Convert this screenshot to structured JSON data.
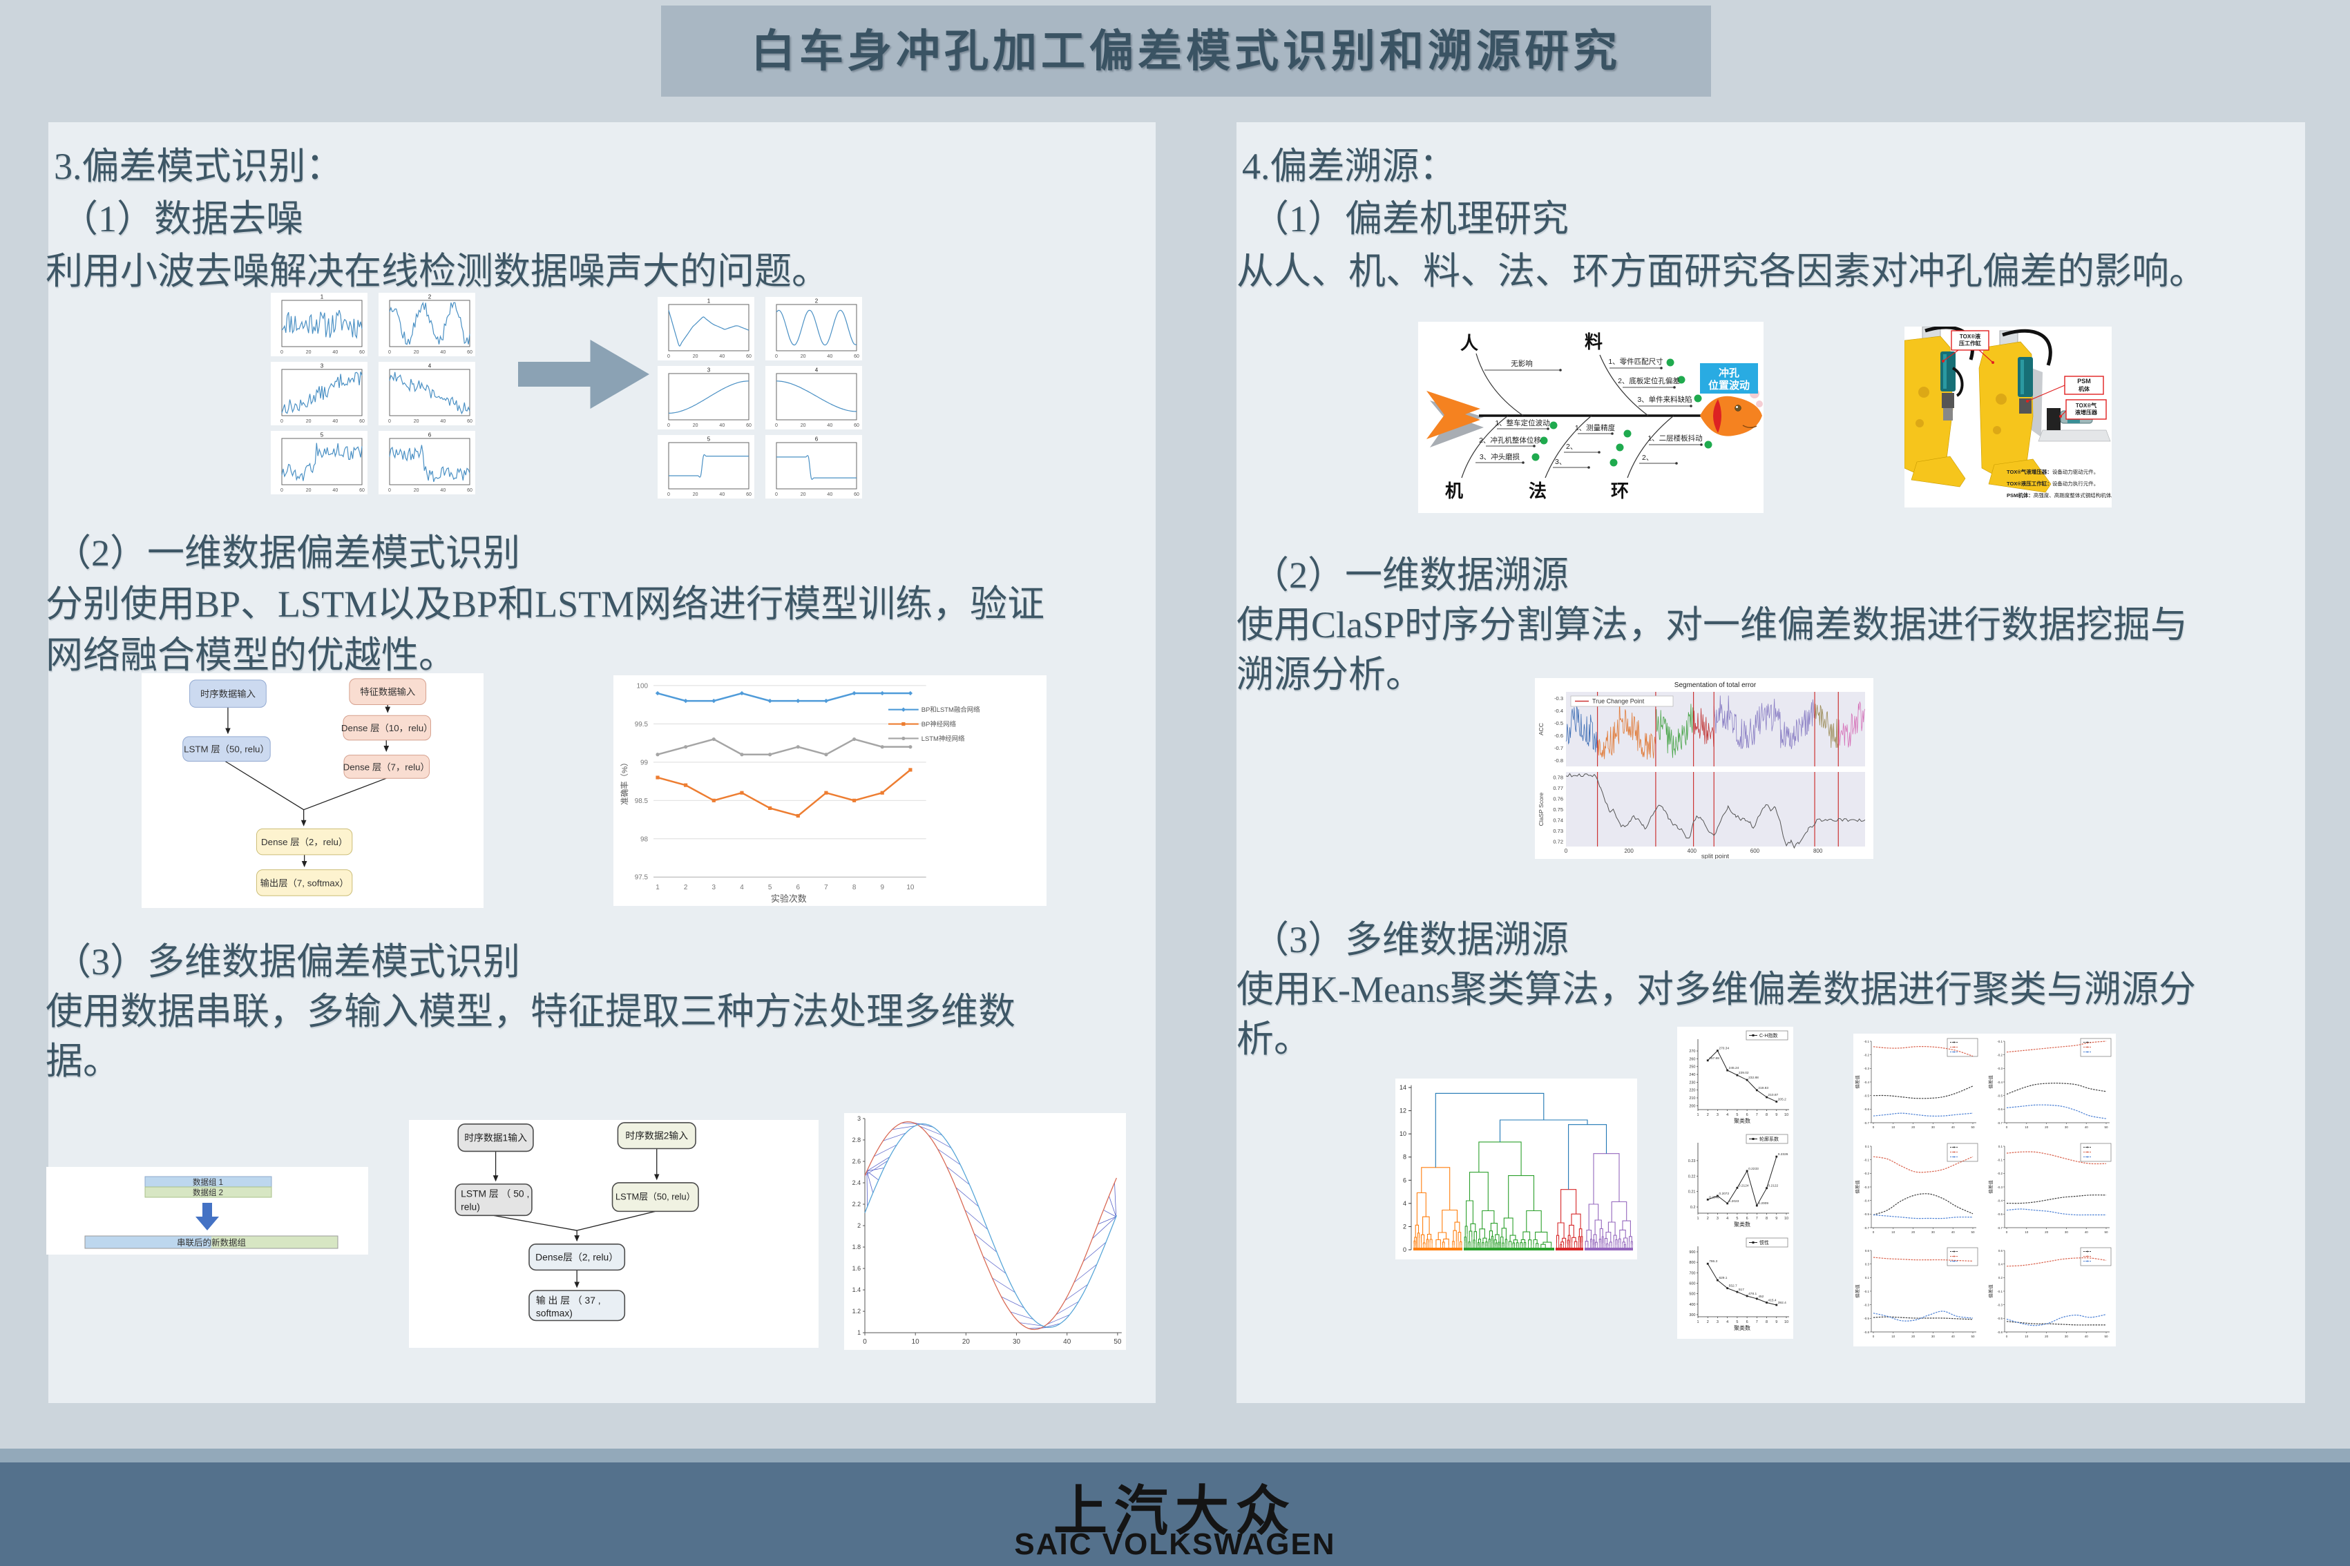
{
  "title": "白车身冲孔加工偏差模式识别和溯源研究",
  "footer": {
    "logo_cn": "上汽大众",
    "logo_en": "SAIC VOLKSWAGEN"
  },
  "left": {
    "heading": "3.偏差模式识别：",
    "s1_label": "（1）数据去噪",
    "s1_desc": "利用小波去噪解决在线检测数据噪声大的问题。",
    "s2_label": "（2）一维数据偏差模式识别",
    "s2_line1": "分别使用BP、LSTM以及BP和LSTM网络进行模型训练，验证",
    "s2_line2": "网络融合模型的优越性。",
    "s3_label": "（3）多维数据偏差模式识别",
    "s3_line1": "使用数据串联，多输入模型，特征提取三种方法处理多维数",
    "s3_line2": "据。",
    "flowchart1": {
      "n_ts": "时序数据输入",
      "n_lstm": "LSTM 层（50, relu）",
      "n_feat": "特征数据输入",
      "n_d10": "Dense 层（10，relu）",
      "n_d7": "Dense 层（7，relu）",
      "n_d2": "Dense 层（2，relu）",
      "n_out": "输出层（7, softmax）"
    },
    "concat": {
      "bar1": "数据组 1",
      "bar2": "数据组 2",
      "result": "串联后的新数据组"
    },
    "flowchart2": {
      "n_ts1": "时序数据1输入",
      "n_lstm1": [
        "LSTM 层 （ 50 ,",
        "relu)"
      ],
      "n_ts2": "时序数据2输入",
      "n_lstm2": "LSTM层（50, relu）",
      "n_d2": "Dense层（2, relu）",
      "n_out": [
        "输 出 层 （ 37 ,",
        "softmax)"
      ]
    }
  },
  "right": {
    "heading": "4.偏差溯源：",
    "s1_label": "（1）偏差机理研究",
    "s1_desc": "从人、机、料、法、环方面研究各因素对冲孔偏差的影响。",
    "s2_label": "（2）一维数据溯源",
    "s2_line1": "使用ClaSP时序分割算法，对一维偏差数据进行数据挖掘与",
    "s2_line2": "溯源分析。",
    "s3_label": "（3）多维数据溯源",
    "s3_line1": "使用K-Means聚类算法，对多维偏差数据进行聚类与溯源分",
    "s3_line2": "析。",
    "fishbone": {
      "effect": [
        "冲孔",
        "位置波动"
      ],
      "box_color": "#29abe2",
      "fish_color": "#f58220",
      "dot_color": "#1faa4e",
      "cat_man": "人",
      "cat_material": "料",
      "cat_machine": "机",
      "cat_method": "法",
      "cat_env": "环",
      "man_items": [
        "无影响"
      ],
      "material_items": [
        "1、零件匹配尺寸",
        "2、底板定位孔偏差",
        "3、单件来料缺陷"
      ],
      "machine_items": [
        "1、整车定位波动",
        "2、冲孔机整体位移",
        "3、冲头磨损"
      ],
      "method_items": [
        "1、测量精度",
        "2、",
        "3、"
      ],
      "env_items": [
        "1、二层楼板抖动",
        "2、"
      ]
    },
    "machine_fig": {
      "label_cylinder": [
        "TOX®液",
        "压工作缸"
      ],
      "label_body": [
        "PSM",
        "机体"
      ],
      "label_booster": [
        "TOX®气",
        "液增压器"
      ],
      "cap1": [
        "TOX®气液增压器：",
        "设备动力驱动元件。"
      ],
      "cap2": [
        "TOX®液压工作缸：",
        "设备动力执行元件。"
      ],
      "cap3": [
        "PSM机体：",
        "高强度、高刚度整体式钢结构机体。"
      ]
    }
  },
  "chart_data": [
    {
      "name": "wavelet",
      "type": "line",
      "panel_titles": [
        "1",
        "2",
        "3",
        "4",
        "5",
        "6"
      ],
      "x_ticks": [
        0,
        20,
        40,
        60
      ],
      "line_color": "#4a90c4",
      "shapes_before": [
        "flat",
        "sine",
        "rise",
        "fall",
        "stepup",
        "stepdown"
      ],
      "shapes_after": [
        "dipbump",
        "sine",
        "rise",
        "fall",
        "stepup",
        "stepdown"
      ]
    },
    {
      "name": "accuracy",
      "type": "line",
      "xlabel": "实验次数",
      "ylabel": "准确率（%）",
      "x": [
        1,
        2,
        3,
        4,
        5,
        6,
        7,
        8,
        9,
        10
      ],
      "ylim": [
        97.5,
        100
      ],
      "yticks": [
        97.5,
        98,
        98.5,
        99,
        99.5,
        100
      ],
      "series": [
        {
          "label": "BP和LSTM融合网络",
          "color": "#4F9BD9",
          "values": [
            99.9,
            99.8,
            99.8,
            99.9,
            99.8,
            99.8,
            99.8,
            99.9,
            99.9,
            99.9
          ]
        },
        {
          "label": "BP神经网络",
          "color": "#ED7D31",
          "values": [
            98.8,
            98.7,
            98.5,
            98.6,
            98.4,
            98.3,
            98.6,
            98.5,
            98.6,
            98.9
          ]
        },
        {
          "label": "LSTM神经网络",
          "color": "#A5A5A5",
          "values": [
            99.1,
            99.2,
            99.3,
            99.1,
            99.1,
            99.2,
            99.1,
            99.3,
            99.2,
            99.2
          ]
        }
      ]
    },
    {
      "name": "dtw",
      "type": "line",
      "xticks": [
        0,
        10,
        20,
        30,
        40,
        50
      ],
      "yticks": [
        1,
        1.2,
        1.4,
        1.6,
        1.8,
        2,
        2.2,
        2.4,
        2.6,
        2.8,
        3
      ],
      "curve_colors": {
        "reference": "#d96a55",
        "aligned": "#58a6d8",
        "links": "#5560c8"
      }
    },
    {
      "name": "clasp",
      "type": "line",
      "title": "Segmentation of total error",
      "xlabel": "split point",
      "xticks": [
        0,
        200,
        400,
        600,
        800
      ],
      "legend": [
        "True Change Point"
      ],
      "top": {
        "ylabel": "ACC",
        "yticks": [
          -0.3,
          -0.4,
          -0.5,
          -0.6,
          -0.7,
          -0.8
        ]
      },
      "bottom": {
        "ylabel": "ClaSP Score",
        "yticks": [
          0.72,
          0.73,
          0.74,
          0.75,
          0.76,
          0.77,
          0.78
        ]
      },
      "change_points": [
        100,
        285,
        405,
        470,
        790,
        865
      ],
      "segments": [
        {
          "start": 0,
          "end": 100,
          "color": "#3f6fb5",
          "mean": -0.58
        },
        {
          "start": 100,
          "end": 285,
          "color": "#e07b39",
          "mean": -0.6
        },
        {
          "start": 285,
          "end": 405,
          "color": "#4aa54a",
          "mean": -0.57
        },
        {
          "start": 405,
          "end": 470,
          "color": "#c23b3b",
          "mean": -0.55
        },
        {
          "start": 470,
          "end": 790,
          "color": "#8a7fc4",
          "mean": -0.52
        },
        {
          "start": 790,
          "end": 865,
          "color": "#9a8a55",
          "mean": -0.55
        },
        {
          "start": 865,
          "end": 950,
          "color": "#d671b8",
          "mean": -0.52
        }
      ],
      "score": [
        [
          0,
          0.782
        ],
        [
          95,
          0.782
        ],
        [
          110,
          0.77
        ],
        [
          125,
          0.757
        ],
        [
          140,
          0.748
        ],
        [
          150,
          0.75
        ],
        [
          160,
          0.742
        ],
        [
          175,
          0.735
        ],
        [
          190,
          0.733
        ],
        [
          205,
          0.74
        ],
        [
          215,
          0.743
        ],
        [
          230,
          0.74
        ],
        [
          245,
          0.735
        ],
        [
          255,
          0.731
        ],
        [
          270,
          0.742
        ],
        [
          285,
          0.75
        ],
        [
          295,
          0.755
        ],
        [
          310,
          0.75
        ],
        [
          325,
          0.742
        ],
        [
          340,
          0.736
        ],
        [
          355,
          0.733
        ],
        [
          370,
          0.73
        ],
        [
          385,
          0.722
        ],
        [
          395,
          0.726
        ],
        [
          405,
          0.737
        ],
        [
          415,
          0.743
        ],
        [
          430,
          0.742
        ],
        [
          445,
          0.735
        ],
        [
          455,
          0.728
        ],
        [
          470,
          0.726
        ],
        [
          485,
          0.734
        ],
        [
          500,
          0.745
        ],
        [
          515,
          0.752
        ],
        [
          525,
          0.748
        ],
        [
          540,
          0.744
        ],
        [
          555,
          0.741
        ],
        [
          570,
          0.74
        ],
        [
          585,
          0.737
        ],
        [
          595,
          0.732
        ],
        [
          610,
          0.742
        ],
        [
          625,
          0.751
        ],
        [
          635,
          0.755
        ],
        [
          650,
          0.749
        ],
        [
          665,
          0.752
        ],
        [
          680,
          0.738
        ],
        [
          690,
          0.725
        ],
        [
          700,
          0.717
        ],
        [
          715,
          0.72
        ],
        [
          725,
          0.715
        ],
        [
          740,
          0.719
        ],
        [
          755,
          0.726
        ],
        [
          770,
          0.731
        ],
        [
          785,
          0.735
        ],
        [
          800,
          0.74
        ],
        [
          860,
          0.74
        ],
        [
          950,
          0.74
        ]
      ]
    },
    {
      "name": "dendrogram",
      "type": "dendrogram",
      "yticks": [
        0,
        2,
        4,
        6,
        8,
        10,
        12,
        14
      ],
      "link_color": "#1f77b4",
      "merge_heights": [
        10.8,
        11.2,
        13.5
      ],
      "clusters": [
        {
          "color": "#ff7f0e",
          "x0": 26,
          "x1": 97,
          "root_height": 7.1
        },
        {
          "color": "#2ca02c",
          "x0": 99,
          "x1": 230,
          "root_height": 9.3
        },
        {
          "color": "#d62728",
          "x0": 232,
          "x1": 272,
          "root_height": 5.2
        },
        {
          "color": "#9467bd",
          "x0": 274,
          "x1": 344,
          "root_height": 8.3
        }
      ]
    },
    {
      "name": "kmeans_metrics",
      "type": "line",
      "xlabel": "聚类数",
      "charts": [
        {
          "legend": "C-H指数",
          "x": [
            2,
            3,
            4,
            5,
            6,
            7,
            8,
            9
          ],
          "values": [
            257.88,
            270.34,
            245.24,
            239.02,
            232.88,
            219.83,
            210.87,
            205.2
          ],
          "ylim": [
            195,
            278
          ],
          "yticks": [
            200,
            210,
            220,
            230,
            240,
            250,
            260,
            270
          ]
        },
        {
          "legend": "轮廓系数",
          "x": [
            2,
            3,
            4,
            5,
            6,
            7,
            8,
            9
          ],
          "values": [
            0.2048,
            0.2072,
            0.2023,
            0.2124,
            0.2233,
            0.2009,
            0.2122,
            0.2326
          ],
          "ylim": [
            0.196,
            0.238
          ],
          "yticks": [
            0.2,
            0.21,
            0.22,
            0.23
          ]
        },
        {
          "legend": "惯性",
          "x": [
            2,
            3,
            4,
            5,
            6,
            7,
            8,
            9
          ],
          "values": [
            786.3,
            629.1,
            552.7,
            517.0,
            478.1,
            452.0,
            415.4,
            392.4
          ],
          "ylim": [
            280,
            900
          ],
          "yticks": [
            300,
            400,
            500,
            600,
            700,
            800,
            900
          ]
        }
      ]
    },
    {
      "name": "cluster_profiles",
      "type": "line",
      "ylabel": "偏差值",
      "x": [
        0,
        7,
        14,
        21,
        28,
        35,
        42,
        50
      ],
      "series_colors": {
        "red": "#d9604a",
        "black": "#3a3a3a",
        "blue": "#4a7fd4"
      },
      "panels": [
        {
          "ylim": [
            -0.65,
            -0.05
          ],
          "red": [
            -0.09,
            -0.1,
            -0.1,
            -0.09,
            -0.09,
            -0.1,
            -0.12,
            -0.16
          ],
          "black": [
            -0.45,
            -0.45,
            -0.46,
            -0.47,
            -0.47,
            -0.46,
            -0.43,
            -0.38
          ],
          "blue": [
            -0.6,
            -0.59,
            -0.58,
            -0.59,
            -0.6,
            -0.6,
            -0.59,
            -0.58
          ]
        },
        {
          "ylim": [
            -0.65,
            -0.05
          ],
          "red": [
            -0.13,
            -0.12,
            -0.11,
            -0.1,
            -0.09,
            -0.08,
            -0.06,
            -0.05
          ],
          "black": [
            -0.44,
            -0.4,
            -0.37,
            -0.36,
            -0.36,
            -0.37,
            -0.4,
            -0.42
          ],
          "blue": [
            -0.54,
            -0.53,
            -0.52,
            -0.52,
            -0.53,
            -0.56,
            -0.6,
            -0.62
          ]
        },
        {
          "ylim": [
            -0.65,
            0.05
          ],
          "red": [
            -0.04,
            -0.06,
            -0.12,
            -0.17,
            -0.17,
            -0.15,
            -0.1,
            -0.04
          ],
          "black": [
            -0.54,
            -0.5,
            -0.42,
            -0.37,
            -0.36,
            -0.4,
            -0.47,
            -0.53
          ],
          "blue": [
            -0.54,
            -0.55,
            -0.56,
            -0.57,
            -0.57,
            -0.57,
            -0.56,
            -0.56
          ]
        },
        {
          "ylim": [
            -0.65,
            0.05
          ],
          "red": [
            -0.01,
            0.0,
            0.0,
            -0.02,
            -0.05,
            -0.08,
            -0.1,
            -0.1
          ],
          "black": [
            -0.44,
            -0.44,
            -0.43,
            -0.41,
            -0.39,
            -0.38,
            -0.37,
            -0.37
          ],
          "blue": [
            -0.5,
            -0.49,
            -0.5,
            -0.51,
            -0.53,
            -0.54,
            -0.54,
            -0.54
          ]
        },
        {
          "ylim": [
            -0.75,
            0.55
          ],
          "red": [
            0.44,
            0.42,
            0.41,
            0.4,
            0.4,
            0.4,
            0.39,
            0.38
          ],
          "black": [
            -0.52,
            -0.51,
            -0.52,
            -0.53,
            -0.53,
            -0.53,
            -0.54,
            -0.55
          ],
          "blue": [
            -0.45,
            -0.5,
            -0.57,
            -0.56,
            -0.48,
            -0.42,
            -0.5,
            -0.53
          ]
        },
        {
          "ylim": [
            -0.75,
            0.65
          ],
          "red": [
            0.38,
            0.39,
            0.42,
            0.46,
            0.5,
            0.52,
            0.52,
            0.48
          ],
          "black": [
            -0.57,
            -0.59,
            -0.61,
            -0.61,
            -0.62,
            -0.63,
            -0.63,
            -0.63
          ],
          "blue": [
            -0.53,
            -0.6,
            -0.64,
            -0.6,
            -0.5,
            -0.46,
            -0.5,
            -0.45
          ]
        }
      ]
    }
  ]
}
